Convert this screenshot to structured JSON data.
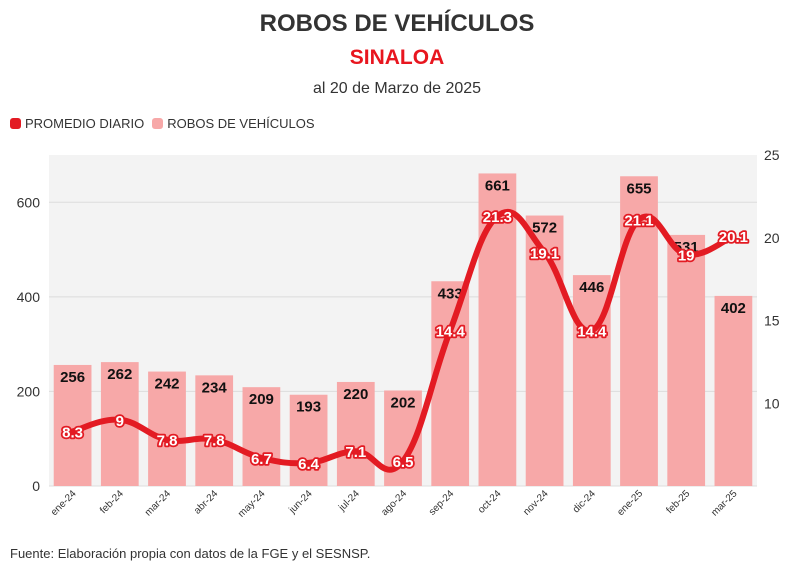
{
  "header": {
    "title": "ROBOS DE VEHÍCULOS",
    "subtitle": "SINALOA",
    "date": "al 20 de Marzo de 2025"
  },
  "legend": {
    "line_label": "PROMEDIO DIARIO",
    "bar_label": "ROBOS DE VEHÍCULOS"
  },
  "footer": {
    "source": "Fuente: Elaboración propia con datos de la FGE y el SESNSP."
  },
  "colors": {
    "bar": "#f7a8a8",
    "line": "#e31b23",
    "plot_bg": "#f3f3f3"
  },
  "chart_data": {
    "type": "bar",
    "title": "ROBOS DE VEHÍCULOS",
    "categories": [
      "ene-24",
      "feb-24",
      "mar-24",
      "abr-24",
      "may-24",
      "jun-24",
      "jul-24",
      "ago-24",
      "sep-24",
      "oct-24",
      "nov-24",
      "dic-24",
      "ene-25",
      "feb-25",
      "mar-25"
    ],
    "series": [
      {
        "name": "ROBOS DE VEHÍCULOS",
        "type": "bar",
        "axis": "left",
        "values": [
          256,
          262,
          242,
          234,
          209,
          193,
          220,
          202,
          433,
          661,
          572,
          446,
          655,
          531,
          402
        ]
      },
      {
        "name": "PROMEDIO DIARIO",
        "type": "line",
        "axis": "right",
        "values": [
          8.3,
          9,
          7.8,
          7.8,
          6.7,
          6.4,
          7.1,
          6.5,
          14.4,
          21.3,
          19.1,
          14.4,
          21.1,
          19,
          20.1
        ]
      }
    ],
    "left_axis": {
      "ylim": [
        0,
        700
      ],
      "ticks": [
        0,
        200,
        400,
        600
      ]
    },
    "right_axis": {
      "ylim": [
        5,
        25
      ],
      "ticks": [
        10,
        15,
        20,
        25
      ]
    },
    "grid": true,
    "legend_position": "top-left"
  }
}
